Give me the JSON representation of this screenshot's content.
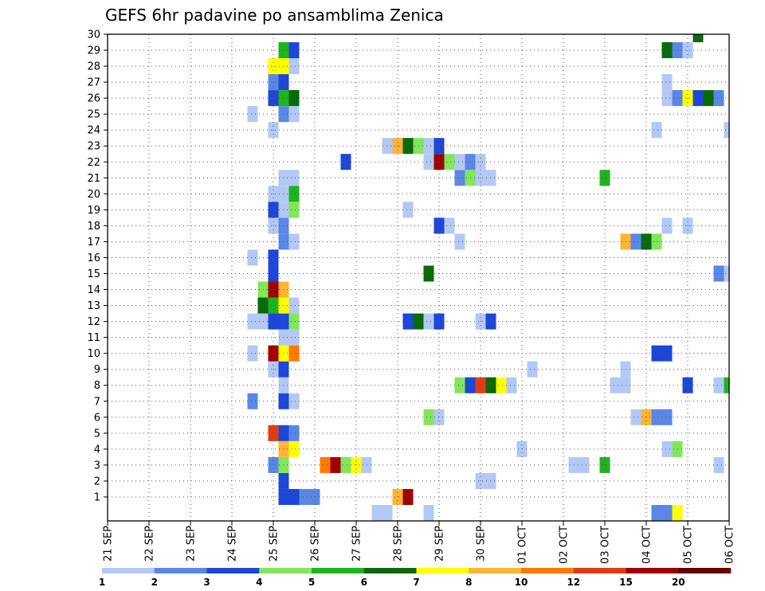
{
  "chart_data": {
    "type": "heatmap",
    "title": "GEFS 6hr padavine po ansamblima Zenica",
    "xlabel": "",
    "ylabel": "",
    "x_tick_labels": [
      "21 SEP",
      "22 SEP",
      "23 SEP",
      "24 SEP",
      "25 SEP",
      "26 SEP",
      "27 SEP",
      "28 SEP",
      "29 SEP",
      "30 SEP",
      "01 OCT",
      "02 OCT",
      "03 OCT",
      "04 OCT",
      "05 OCT",
      "06 OCT"
    ],
    "y_tick_labels": [
      "1",
      "2",
      "3",
      "4",
      "5",
      "6",
      "7",
      "8",
      "9",
      "10",
      "11",
      "12",
      "13",
      "14",
      "15",
      "16",
      "17",
      "18",
      "19",
      "20",
      "21",
      "22",
      "23",
      "24",
      "25",
      "26",
      "27",
      "28",
      "29",
      "30"
    ],
    "xlim": [
      0,
      60
    ],
    "ylim": [
      0,
      30
    ],
    "grid": true,
    "x_unit": "6h step from 21 SEP 00",
    "colorbar": {
      "labels": [
        "1",
        "2",
        "3",
        "4",
        "5",
        "6",
        "7",
        "8",
        "10",
        "12",
        "15",
        "20"
      ],
      "bin_colors": [
        "#b4c8f5",
        "#5a87e6",
        "#1e46d7",
        "#82e65a",
        "#1eb41e",
        "#0a690a",
        "#ffff00",
        "#ffb432",
        "#ff7800",
        "#e13c14",
        "#a00000",
        "#640000"
      ],
      "position": "bottom"
    },
    "cells": [
      {
        "member": 1,
        "x": 17,
        "bin": 2
      },
      {
        "member": 1,
        "x": 18,
        "bin": 2
      },
      {
        "member": 1,
        "x": 19,
        "bin": 1
      },
      {
        "member": 1,
        "x": 20,
        "bin": 1
      },
      {
        "member": 1,
        "x": 28,
        "bin": 7
      },
      {
        "member": 1,
        "x": 29,
        "bin": 10
      },
      {
        "member": 2,
        "x": 17,
        "bin": 2
      },
      {
        "member": 2,
        "x": 36,
        "bin": 0
      },
      {
        "member": 2,
        "x": 37,
        "bin": 0
      },
      {
        "member": 3,
        "x": 16,
        "bin": 1
      },
      {
        "member": 3,
        "x": 17,
        "bin": 3
      },
      {
        "member": 3,
        "x": 21,
        "bin": 8
      },
      {
        "member": 3,
        "x": 22,
        "bin": 10
      },
      {
        "member": 3,
        "x": 23,
        "bin": 3
      },
      {
        "member": 3,
        "x": 24,
        "bin": 6
      },
      {
        "member": 3,
        "x": 25,
        "bin": 0
      },
      {
        "member": 3,
        "x": 45,
        "bin": 0
      },
      {
        "member": 3,
        "x": 46,
        "bin": 0
      },
      {
        "member": 3,
        "x": 48,
        "bin": 4
      },
      {
        "member": 3,
        "x": 59,
        "bin": 0
      },
      {
        "member": 4,
        "x": 17,
        "bin": 7
      },
      {
        "member": 4,
        "x": 18,
        "bin": 6
      },
      {
        "member": 4,
        "x": 40,
        "bin": 0
      },
      {
        "member": 4,
        "x": 54,
        "bin": 0
      },
      {
        "member": 4,
        "x": 55,
        "bin": 3
      },
      {
        "member": 5,
        "x": 16,
        "bin": 9
      },
      {
        "member": 5,
        "x": 17,
        "bin": 2
      },
      {
        "member": 5,
        "x": 18,
        "bin": 1
      },
      {
        "member": 6,
        "x": 31,
        "bin": 3
      },
      {
        "member": 6,
        "x": 32,
        "bin": 0
      },
      {
        "member": 6,
        "x": 51,
        "bin": 0
      },
      {
        "member": 6,
        "x": 52,
        "bin": 7
      },
      {
        "member": 6,
        "x": 53,
        "bin": 1
      },
      {
        "member": 6,
        "x": 54,
        "bin": 1
      },
      {
        "member": 7,
        "x": 14,
        "bin": 1
      },
      {
        "member": 7,
        "x": 17,
        "bin": 2
      },
      {
        "member": 7,
        "x": 18,
        "bin": 0
      },
      {
        "member": 8,
        "x": 17,
        "bin": 0
      },
      {
        "member": 8,
        "x": 34,
        "bin": 3
      },
      {
        "member": 8,
        "x": 35,
        "bin": 2
      },
      {
        "member": 8,
        "x": 36,
        "bin": 9
      },
      {
        "member": 8,
        "x": 37,
        "bin": 5
      },
      {
        "member": 8,
        "x": 38,
        "bin": 6
      },
      {
        "member": 8,
        "x": 39,
        "bin": 0
      },
      {
        "member": 8,
        "x": 49,
        "bin": 0
      },
      {
        "member": 8,
        "x": 50,
        "bin": 0
      },
      {
        "member": 8,
        "x": 56,
        "bin": 2
      },
      {
        "member": 8,
        "x": 59,
        "bin": 0
      },
      {
        "member": 8,
        "x": 60,
        "bin": 4
      },
      {
        "member": 9,
        "x": 16,
        "bin": 0
      },
      {
        "member": 9,
        "x": 17,
        "bin": 2
      },
      {
        "member": 9,
        "x": 41,
        "bin": 0
      },
      {
        "member": 9,
        "x": 50,
        "bin": 0
      },
      {
        "member": 10,
        "x": 14,
        "bin": 0
      },
      {
        "member": 10,
        "x": 16,
        "bin": 10
      },
      {
        "member": 10,
        "x": 17,
        "bin": 6
      },
      {
        "member": 10,
        "x": 18,
        "bin": 8
      },
      {
        "member": 10,
        "x": 53,
        "bin": 2
      },
      {
        "member": 10,
        "x": 54,
        "bin": 2
      },
      {
        "member": 11,
        "x": 17,
        "bin": 0
      },
      {
        "member": 11,
        "x": 18,
        "bin": 0
      },
      {
        "member": 12,
        "x": 14,
        "bin": 0
      },
      {
        "member": 12,
        "x": 15,
        "bin": 0
      },
      {
        "member": 12,
        "x": 16,
        "bin": 2
      },
      {
        "member": 12,
        "x": 17,
        "bin": 2
      },
      {
        "member": 12,
        "x": 18,
        "bin": 3
      },
      {
        "member": 12,
        "x": 29,
        "bin": 2
      },
      {
        "member": 12,
        "x": 30,
        "bin": 5
      },
      {
        "member": 12,
        "x": 31,
        "bin": 0
      },
      {
        "member": 12,
        "x": 32,
        "bin": 2
      },
      {
        "member": 12,
        "x": 36,
        "bin": 0
      },
      {
        "member": 12,
        "x": 37,
        "bin": 2
      },
      {
        "member": 13,
        "x": 15,
        "bin": 5
      },
      {
        "member": 13,
        "x": 16,
        "bin": 4
      },
      {
        "member": 13,
        "x": 17,
        "bin": 6
      },
      {
        "member": 13,
        "x": 18,
        "bin": 0
      },
      {
        "member": 14,
        "x": 15,
        "bin": 3
      },
      {
        "member": 14,
        "x": 16,
        "bin": 10
      },
      {
        "member": 14,
        "x": 17,
        "bin": 7
      },
      {
        "member": 15,
        "x": 16,
        "bin": 2
      },
      {
        "member": 15,
        "x": 31,
        "bin": 5
      },
      {
        "member": 15,
        "x": 59,
        "bin": 1
      },
      {
        "member": 15,
        "x": 60,
        "bin": 0
      },
      {
        "member": 16,
        "x": 14,
        "bin": 0
      },
      {
        "member": 16,
        "x": 16,
        "bin": 2
      },
      {
        "member": 17,
        "x": 17,
        "bin": 1
      },
      {
        "member": 17,
        "x": 18,
        "bin": 0
      },
      {
        "member": 17,
        "x": 34,
        "bin": 0
      },
      {
        "member": 17,
        "x": 50,
        "bin": 7
      },
      {
        "member": 17,
        "x": 51,
        "bin": 1
      },
      {
        "member": 17,
        "x": 52,
        "bin": 5
      },
      {
        "member": 17,
        "x": 53,
        "bin": 3
      },
      {
        "member": 18,
        "x": 16,
        "bin": 0
      },
      {
        "member": 18,
        "x": 17,
        "bin": 1
      },
      {
        "member": 18,
        "x": 32,
        "bin": 2
      },
      {
        "member": 18,
        "x": 33,
        "bin": 0
      },
      {
        "member": 18,
        "x": 54,
        "bin": 0
      },
      {
        "member": 18,
        "x": 56,
        "bin": 0
      },
      {
        "member": 19,
        "x": 16,
        "bin": 2
      },
      {
        "member": 19,
        "x": 17,
        "bin": 0
      },
      {
        "member": 19,
        "x": 18,
        "bin": 3
      },
      {
        "member": 19,
        "x": 29,
        "bin": 0
      },
      {
        "member": 20,
        "x": 16,
        "bin": 0
      },
      {
        "member": 20,
        "x": 17,
        "bin": 0
      },
      {
        "member": 20,
        "x": 18,
        "bin": 4
      },
      {
        "member": 21,
        "x": 17,
        "bin": 0
      },
      {
        "member": 21,
        "x": 18,
        "bin": 0
      },
      {
        "member": 21,
        "x": 34,
        "bin": 1
      },
      {
        "member": 21,
        "x": 35,
        "bin": 3
      },
      {
        "member": 21,
        "x": 36,
        "bin": 0
      },
      {
        "member": 21,
        "x": 37,
        "bin": 0
      },
      {
        "member": 21,
        "x": 48,
        "bin": 4
      },
      {
        "member": 22,
        "x": 23,
        "bin": 2
      },
      {
        "member": 22,
        "x": 31,
        "bin": 0
      },
      {
        "member": 22,
        "x": 32,
        "bin": 10
      },
      {
        "member": 22,
        "x": 33,
        "bin": 3
      },
      {
        "member": 22,
        "x": 34,
        "bin": 0
      },
      {
        "member": 22,
        "x": 35,
        "bin": 1
      },
      {
        "member": 22,
        "x": 36,
        "bin": 0
      },
      {
        "member": 23,
        "x": 27,
        "bin": 0
      },
      {
        "member": 23,
        "x": 28,
        "bin": 7
      },
      {
        "member": 23,
        "x": 29,
        "bin": 5
      },
      {
        "member": 23,
        "x": 30,
        "bin": 3
      },
      {
        "member": 23,
        "x": 31,
        "bin": 0
      },
      {
        "member": 23,
        "x": 32,
        "bin": 2
      },
      {
        "member": 24,
        "x": 16,
        "bin": 0
      },
      {
        "member": 24,
        "x": 53,
        "bin": 0
      },
      {
        "member": 24,
        "x": 60,
        "bin": 0
      },
      {
        "member": 25,
        "x": 14,
        "bin": 0
      },
      {
        "member": 25,
        "x": 17,
        "bin": 1
      },
      {
        "member": 25,
        "x": 18,
        "bin": 0
      },
      {
        "member": 26,
        "x": 16,
        "bin": 2
      },
      {
        "member": 26,
        "x": 17,
        "bin": 4
      },
      {
        "member": 26,
        "x": 18,
        "bin": 5
      },
      {
        "member": 26,
        "x": 54,
        "bin": 0
      },
      {
        "member": 26,
        "x": 55,
        "bin": 1
      },
      {
        "member": 26,
        "x": 56,
        "bin": 6
      },
      {
        "member": 26,
        "x": 57,
        "bin": 2
      },
      {
        "member": 26,
        "x": 58,
        "bin": 5
      },
      {
        "member": 26,
        "x": 59,
        "bin": 1
      },
      {
        "member": 27,
        "x": 16,
        "bin": 1
      },
      {
        "member": 27,
        "x": 17,
        "bin": 2
      },
      {
        "member": 27,
        "x": 54,
        "bin": 0
      },
      {
        "member": 28,
        "x": 16,
        "bin": 6
      },
      {
        "member": 28,
        "x": 17,
        "bin": 6
      },
      {
        "member": 28,
        "x": 18,
        "bin": 0
      },
      {
        "member": 29,
        "x": 17,
        "bin": 4
      },
      {
        "member": 29,
        "x": 18,
        "bin": 2
      },
      {
        "member": 29,
        "x": 54,
        "bin": 5
      },
      {
        "member": 29,
        "x": 55,
        "bin": 1
      },
      {
        "member": 29,
        "x": 56,
        "bin": 0
      },
      {
        "member": 30,
        "x": 57,
        "bin": 5
      },
      {
        "member": 0,
        "x": 26,
        "bin": 0
      },
      {
        "member": 0,
        "x": 27,
        "bin": 0
      },
      {
        "member": 0,
        "x": 31,
        "bin": 0
      },
      {
        "member": 0,
        "x": 53,
        "bin": 1
      },
      {
        "member": 0,
        "x": 54,
        "bin": 1
      },
      {
        "member": 0,
        "x": 55,
        "bin": 6
      }
    ]
  }
}
